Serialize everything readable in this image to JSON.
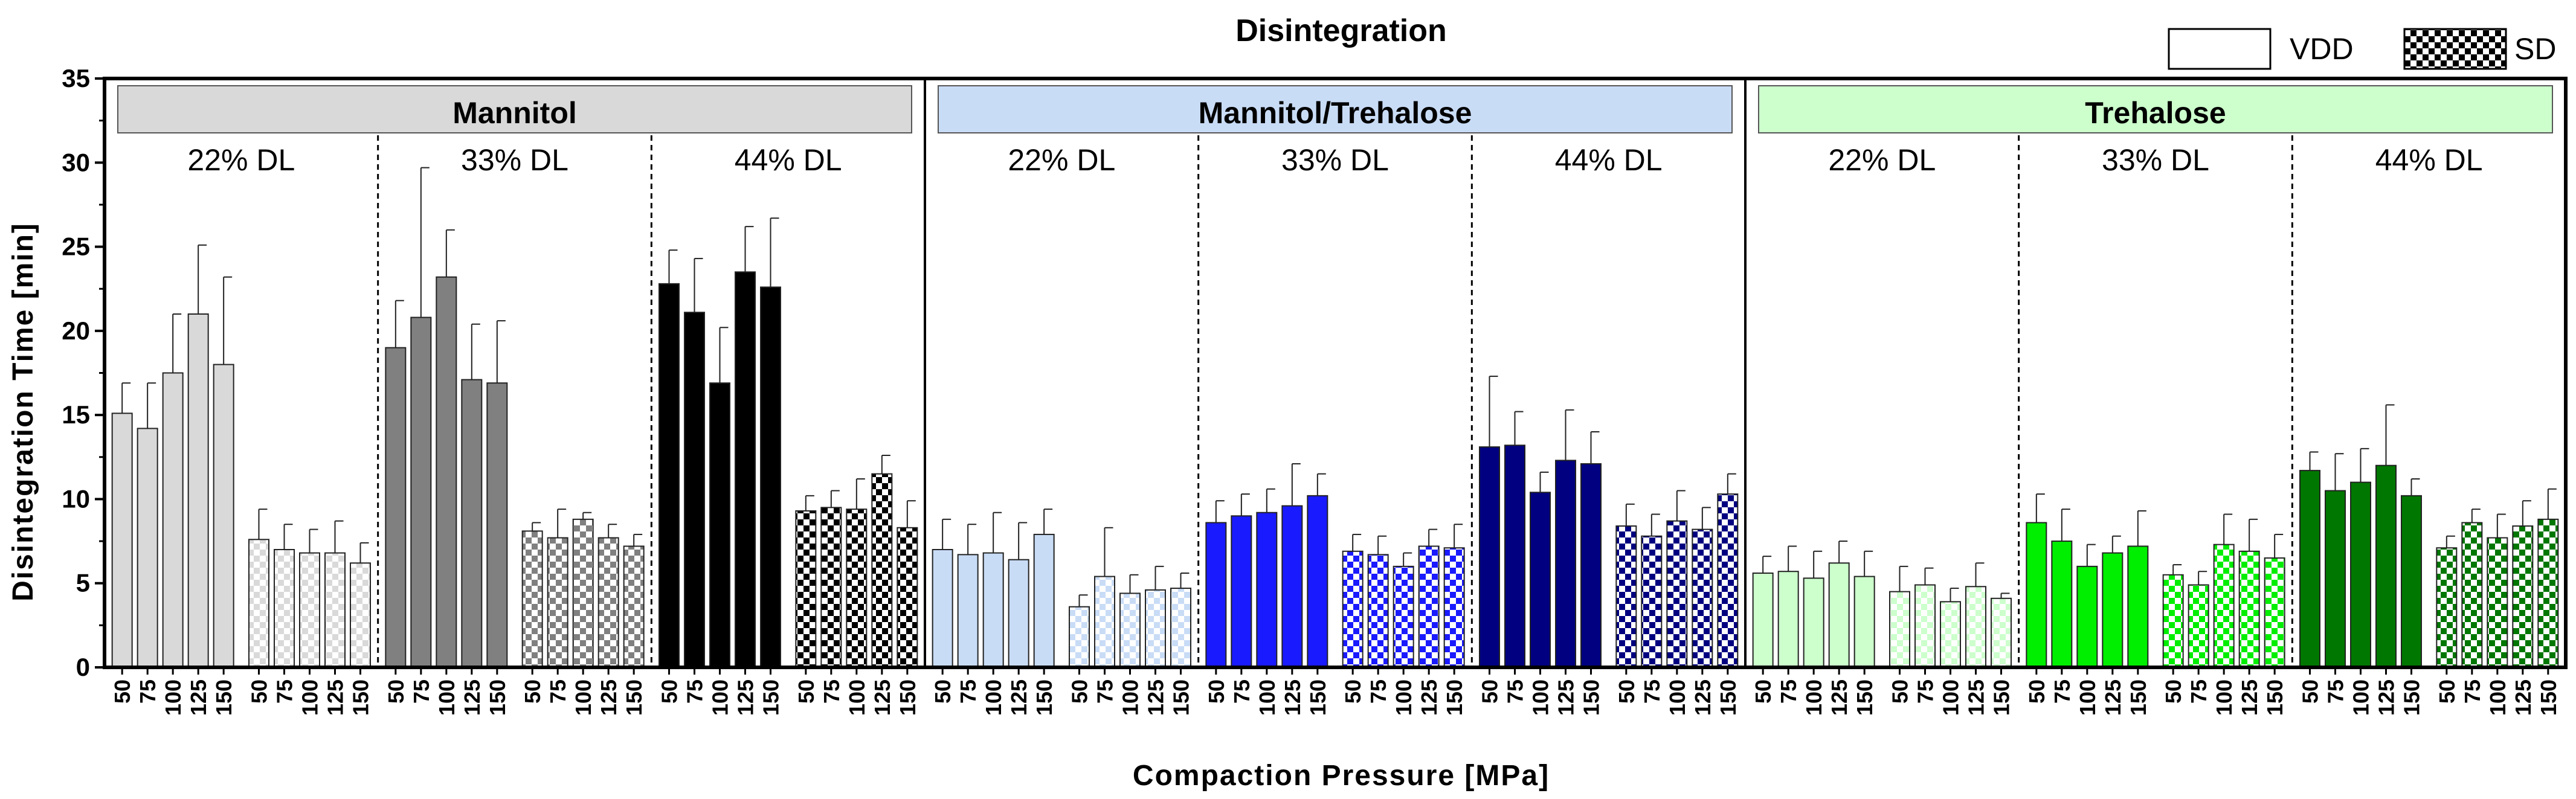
{
  "chart_data": {
    "type": "bar",
    "title": "Disintegration",
    "xlabel": "Compaction  Pressure  [MPa]",
    "ylabel": "Disintegration Time [min]",
    "ylim": [
      0,
      35
    ],
    "yticks": [
      0,
      5,
      10,
      15,
      20,
      25,
      30,
      35
    ],
    "categories": [
      "50",
      "75",
      "100",
      "125",
      "150"
    ],
    "legend": {
      "placement": "top-right",
      "entries": [
        {
          "label": "VDD",
          "pattern": "solid-white"
        },
        {
          "label": "SD",
          "pattern": "checkerboard"
        }
      ]
    },
    "panels": [
      {
        "name": "Mannitol",
        "header_color": "#d9d9d9",
        "groups": [
          {
            "label": "22% DL",
            "color": "#d9d9d9",
            "vdd": {
              "values": [
                15.1,
                14.2,
                17.5,
                21.0,
                18.0
              ],
              "errors": [
                1.8,
                2.7,
                3.5,
                4.1,
                5.2
              ]
            },
            "sd": {
              "values": [
                7.6,
                7.0,
                6.8,
                6.8,
                6.2
              ],
              "errors": [
                1.8,
                1.5,
                1.4,
                1.9,
                1.2
              ]
            }
          },
          {
            "label": "33% DL",
            "color": "#808080",
            "vdd": {
              "values": [
                19.0,
                20.8,
                23.2,
                17.1,
                16.9
              ],
              "errors": [
                2.8,
                8.9,
                2.8,
                3.3,
                3.7
              ]
            },
            "sd": {
              "values": [
                8.1,
                7.7,
                8.8,
                7.7,
                7.2
              ],
              "errors": [
                0.5,
                1.7,
                0.4,
                0.8,
                0.7
              ]
            }
          },
          {
            "label": "44% DL",
            "color": "#000000",
            "vdd": {
              "values": [
                22.8,
                21.1,
                16.9,
                23.5,
                22.6
              ],
              "errors": [
                2.0,
                3.2,
                3.3,
                2.7,
                4.1
              ]
            },
            "sd": {
              "values": [
                9.3,
                9.5,
                9.4,
                11.5,
                8.3
              ],
              "errors": [
                0.9,
                1.0,
                1.8,
                1.1,
                1.6
              ]
            }
          }
        ]
      },
      {
        "name": "Mannitol/Trehalose",
        "header_color": "#c9dcf6",
        "groups": [
          {
            "label": "22% DL",
            "color": "#c9dcf6",
            "vdd": {
              "values": [
                7.0,
                6.7,
                6.8,
                6.4,
                7.9
              ],
              "errors": [
                1.8,
                1.8,
                2.4,
                2.2,
                1.5
              ]
            },
            "sd": {
              "values": [
                3.6,
                5.4,
                4.4,
                4.6,
                4.7
              ],
              "errors": [
                0.7,
                2.9,
                1.1,
                1.4,
                0.9
              ]
            }
          },
          {
            "label": "33% DL",
            "color": "#1a1aff",
            "vdd": {
              "values": [
                8.6,
                9.0,
                9.2,
                9.6,
                10.2
              ],
              "errors": [
                1.3,
                1.3,
                1.4,
                2.5,
                1.3
              ]
            },
            "sd": {
              "values": [
                6.9,
                6.7,
                6.0,
                7.2,
                7.1
              ],
              "errors": [
                1.0,
                1.1,
                0.8,
                1.0,
                1.4
              ]
            }
          },
          {
            "label": "44% DL",
            "color": "#000080",
            "vdd": {
              "values": [
                13.1,
                13.2,
                10.4,
                12.3,
                12.1
              ],
              "errors": [
                4.2,
                2.0,
                1.2,
                3.0,
                1.9
              ]
            },
            "sd": {
              "values": [
                8.4,
                7.8,
                8.7,
                8.2,
                10.3
              ],
              "errors": [
                1.3,
                1.3,
                1.8,
                1.3,
                1.2
              ]
            }
          }
        ]
      },
      {
        "name": "Trehalose",
        "header_color": "#ccffcc",
        "groups": [
          {
            "label": "22% DL",
            "color": "#ccffcc",
            "vdd": {
              "values": [
                5.6,
                5.7,
                5.3,
                6.2,
                5.4
              ],
              "errors": [
                1.0,
                1.5,
                1.6,
                1.3,
                1.5
              ]
            },
            "sd": {
              "values": [
                4.5,
                4.9,
                3.9,
                4.8,
                4.1
              ],
              "errors": [
                1.5,
                1.0,
                0.8,
                1.4,
                0.3
              ]
            }
          },
          {
            "label": "33% DL",
            "color": "#00ee00",
            "vdd": {
              "values": [
                8.6,
                7.5,
                6.0,
                6.8,
                7.2
              ],
              "errors": [
                1.7,
                1.9,
                1.3,
                1.0,
                2.1
              ]
            },
            "sd": {
              "values": [
                5.5,
                4.9,
                7.3,
                6.9,
                6.5
              ],
              "errors": [
                0.6,
                0.8,
                1.8,
                1.9,
                1.4
              ]
            }
          },
          {
            "label": "44% DL",
            "color": "#007700",
            "vdd": {
              "values": [
                11.7,
                10.5,
                11.0,
                12.0,
                10.2
              ],
              "errors": [
                1.1,
                2.2,
                2.0,
                3.6,
                1.0
              ]
            },
            "sd": {
              "values": [
                7.1,
                8.6,
                7.7,
                8.4,
                8.8
              ],
              "errors": [
                0.7,
                0.8,
                1.4,
                1.5,
                1.8
              ]
            }
          }
        ]
      }
    ]
  }
}
